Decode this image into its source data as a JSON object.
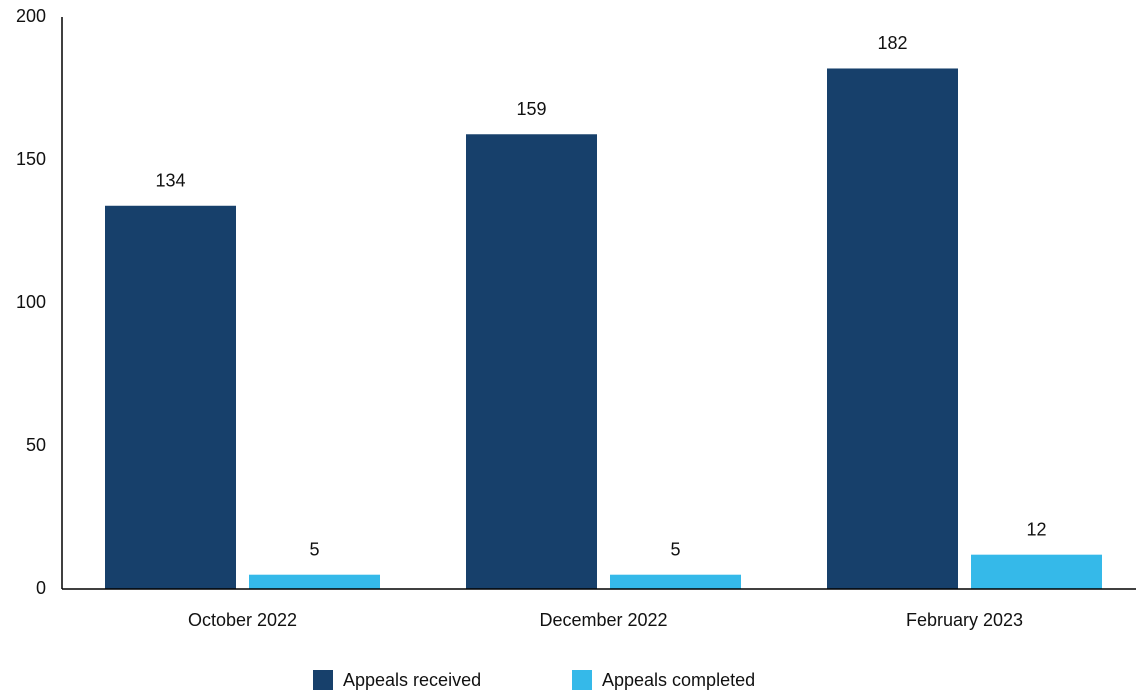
{
  "chart_data": {
    "type": "bar",
    "categories": [
      "October 2022",
      "December 2022",
      "February 2023"
    ],
    "series": [
      {
        "name": "Appeals received",
        "color": "#17406b",
        "values": [
          134,
          159,
          182
        ]
      },
      {
        "name": "Appeals completed",
        "color": "#35b9e9",
        "values": [
          5,
          5,
          12
        ]
      }
    ],
    "ylim": [
      0,
      200
    ],
    "yticks": [
      0,
      50,
      100,
      150,
      200
    ],
    "grid": false,
    "legend": "bottom"
  }
}
